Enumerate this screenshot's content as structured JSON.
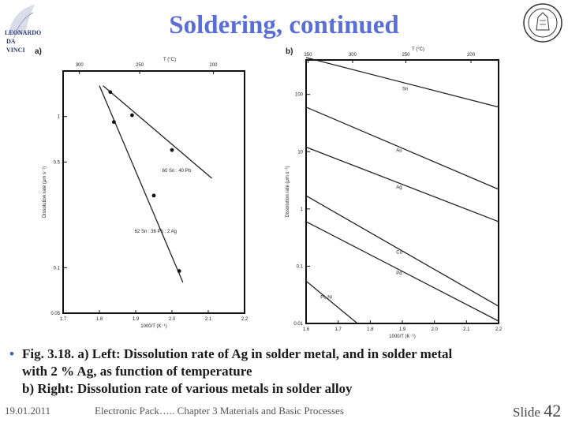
{
  "slide": {
    "title": "Soldering, continued",
    "logo_left_text": [
      "LEONARDO",
      "DA",
      "VINCI"
    ],
    "caption_lines": [
      "Fig. 3.18. a) Left: Dissolution rate of Ag in solder metal, and in solder metal",
      "with 2 % Ag, as function of temperature",
      "b) Right: Dissolution rate of various metals in solder alloy"
    ],
    "footer": {
      "date": "19.01.2011",
      "center": "Electronic Pack….. Chapter 3 Materials and Basic Processes",
      "slide_label": "Slide",
      "slide_number": "42"
    }
  },
  "chart_data": [
    {
      "type": "scatter",
      "panel_label": "a)",
      "title": "",
      "xlabel": "1000/T (K⁻¹)",
      "ylabel": "Dissolution rate (μm s⁻¹)",
      "top_axis_label": "T (°C)",
      "x_ticks": [
        "1.7",
        "1.8",
        "1.9",
        "2.0",
        "2.1",
        "2.2"
      ],
      "xlim": [
        1.7,
        2.2
      ],
      "y_scale": "log",
      "y_ticks": [
        "0.05",
        "0.1",
        "0.5",
        "1"
      ],
      "ylim": [
        0.05,
        2
      ],
      "top_ticks": [
        "300",
        "250",
        "200"
      ],
      "top_tick_x_values": [
        1.745,
        1.911,
        2.114
      ],
      "series": [
        {
          "name": "60 Sn : 40 Pb",
          "x": [
            1.89,
            2.0
          ],
          "y": [
            1.02,
            0.6
          ],
          "line": [
            [
              1.81,
              1.6
            ],
            [
              2.11,
              0.39
            ]
          ]
        },
        {
          "name": "62 Sn : 36 Pb : 2 Ag",
          "x": [
            1.83,
            1.84,
            1.95,
            2.02
          ],
          "y": [
            1.45,
            0.92,
            0.3,
            0.095
          ],
          "line": [
            [
              1.8,
              1.6
            ],
            [
              2.03,
              0.08
            ]
          ]
        }
      ]
    },
    {
      "type": "line",
      "panel_label": "b)",
      "title": "",
      "xlabel": "1000/T (K⁻¹)",
      "ylabel": "Dissolution rate (μm s⁻¹)",
      "top_axis_label": "T (°C)",
      "x_ticks": [
        "1.6",
        "1.7",
        "1.8",
        "1.9",
        "2.0",
        "2.1",
        "2.2"
      ],
      "xlim": [
        1.6,
        2.2
      ],
      "y_scale": "log",
      "y_ticks": [
        "0.01",
        "0.1",
        "1",
        "10",
        "100"
      ],
      "ylim": [
        0.01,
        400
      ],
      "top_ticks": [
        "350",
        "300",
        "250",
        "200"
      ],
      "top_tick_x_values": [
        1.606,
        1.745,
        1.911,
        2.114
      ],
      "series": [
        {
          "name": "Sn",
          "line": [
            [
              1.6,
              440
            ],
            [
              2.2,
              60
            ]
          ]
        },
        {
          "name": "Au",
          "line": [
            [
              1.6,
              60
            ],
            [
              2.2,
              2.2
            ]
          ]
        },
        {
          "name": "Ag",
          "line": [
            [
              1.6,
              12
            ],
            [
              2.2,
              0.6
            ]
          ]
        },
        {
          "name": "Cu",
          "line": [
            [
              1.6,
              1.7
            ],
            [
              2.2,
              0.02
            ]
          ]
        },
        {
          "name": "Pd",
          "line": [
            [
              1.6,
              0.6
            ],
            [
              2.2,
              0.011
            ]
          ]
        },
        {
          "name": "Pt, Ni",
          "line": [
            [
              1.6,
              0.055
            ],
            [
              1.76,
              0.01
            ]
          ]
        }
      ]
    }
  ]
}
